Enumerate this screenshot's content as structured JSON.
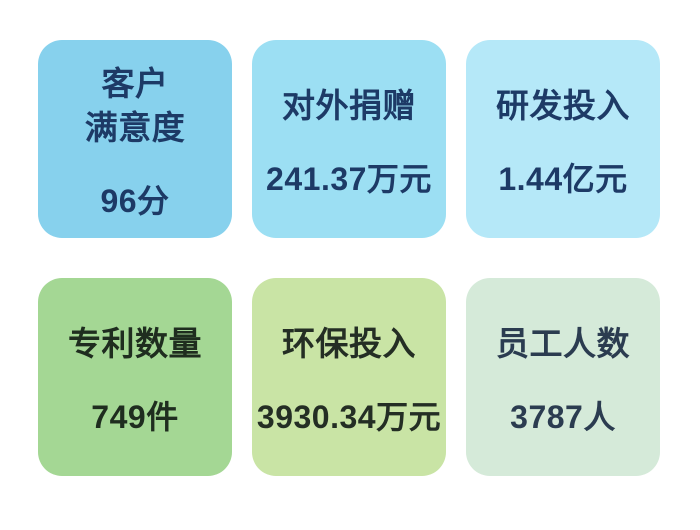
{
  "page": {
    "background": "#ffffff",
    "description_labels": {
      "row1_theme": "blue",
      "row2_theme": "green"
    }
  },
  "chart_data": {
    "type": "table",
    "title": "",
    "categories": [
      "客户满意度",
      "对外捐赠",
      "研发投入",
      "专利数量",
      "环保投入",
      "员工人数"
    ],
    "values": [
      "96分",
      "241.37万元",
      "1.44亿元",
      "749件",
      "3930.34万元",
      "3787人"
    ],
    "numeric_values": [
      96,
      241.37,
      1.44,
      749,
      3930.34,
      3787
    ],
    "units": [
      "分",
      "万元",
      "亿元",
      "件",
      "万元",
      "人"
    ],
    "layout": "2 rows x 3 columns of KPI cards"
  },
  "cards": [
    {
      "id": "customer-satisfaction",
      "label": "客户\n满意度",
      "value": "96分",
      "bg": "#87d1ed",
      "text_color": "#1d3a66"
    },
    {
      "id": "external-donations",
      "label": "对外捐赠",
      "value": "241.37万元",
      "bg": "#9cdff3",
      "text_color": "#1d3a66"
    },
    {
      "id": "rd-investment",
      "label": "研发投入",
      "value": "1.44亿元",
      "bg": "#b5e8f8",
      "text_color": "#1d3a66"
    },
    {
      "id": "patent-count",
      "label": "专利数量",
      "value": "749件",
      "bg": "#a4d794",
      "text_color": "#1f2d1f"
    },
    {
      "id": "environmental-investment",
      "label": "环保投入",
      "value": "3930.34万元",
      "bg": "#c9e4a5",
      "text_color": "#242e24"
    },
    {
      "id": "employee-count",
      "label": "员工人数",
      "value": "3787人",
      "bg": "#d5ead9",
      "text_color": "#2b3c50"
    }
  ]
}
